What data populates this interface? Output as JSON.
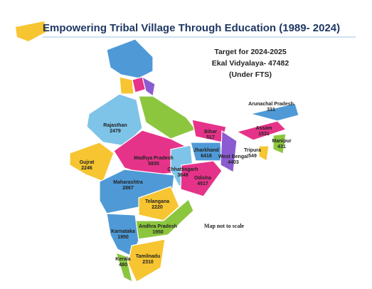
{
  "title": "Empowering Tribal Village Through Education (1989- 2024)",
  "target": [
    "Target for 2024-2025",
    "Ekal Vidyalaya- 47482",
    "(Under FTS)"
  ],
  "states": [
    {
      "name": "Rajasthan",
      "value": 2479
    },
    {
      "name": "Gujrat",
      "value": 2246
    },
    {
      "name": "Madhya Pradesh",
      "value": 5835
    },
    {
      "name": "Maharashtra",
      "value": 2867
    },
    {
      "name": "Chhattisgarh",
      "value": 3648
    },
    {
      "name": "Bihar",
      "value": 517
    },
    {
      "name": "Jharkhand",
      "value": 6418
    },
    {
      "name": "West Bengal",
      "value": 4403
    },
    {
      "name": "Odisha",
      "value": 4517
    },
    {
      "name": "Arunachal Pradesh",
      "value": 331
    },
    {
      "name": "Assam",
      "value": 1531
    },
    {
      "name": "Manipur",
      "value": 431
    },
    {
      "name": "Tripura",
      "value": 549
    },
    {
      "name": "Telangana",
      "value": 2220
    },
    {
      "name": "Andhra Pradesh",
      "value": 1950
    },
    {
      "name": "Karnataka",
      "value": 1950
    },
    {
      "name": "Kerala",
      "value": 480
    },
    {
      "name": "Tamilnadu",
      "value": 2310
    }
  ],
  "note": "Map not to scale"
}
